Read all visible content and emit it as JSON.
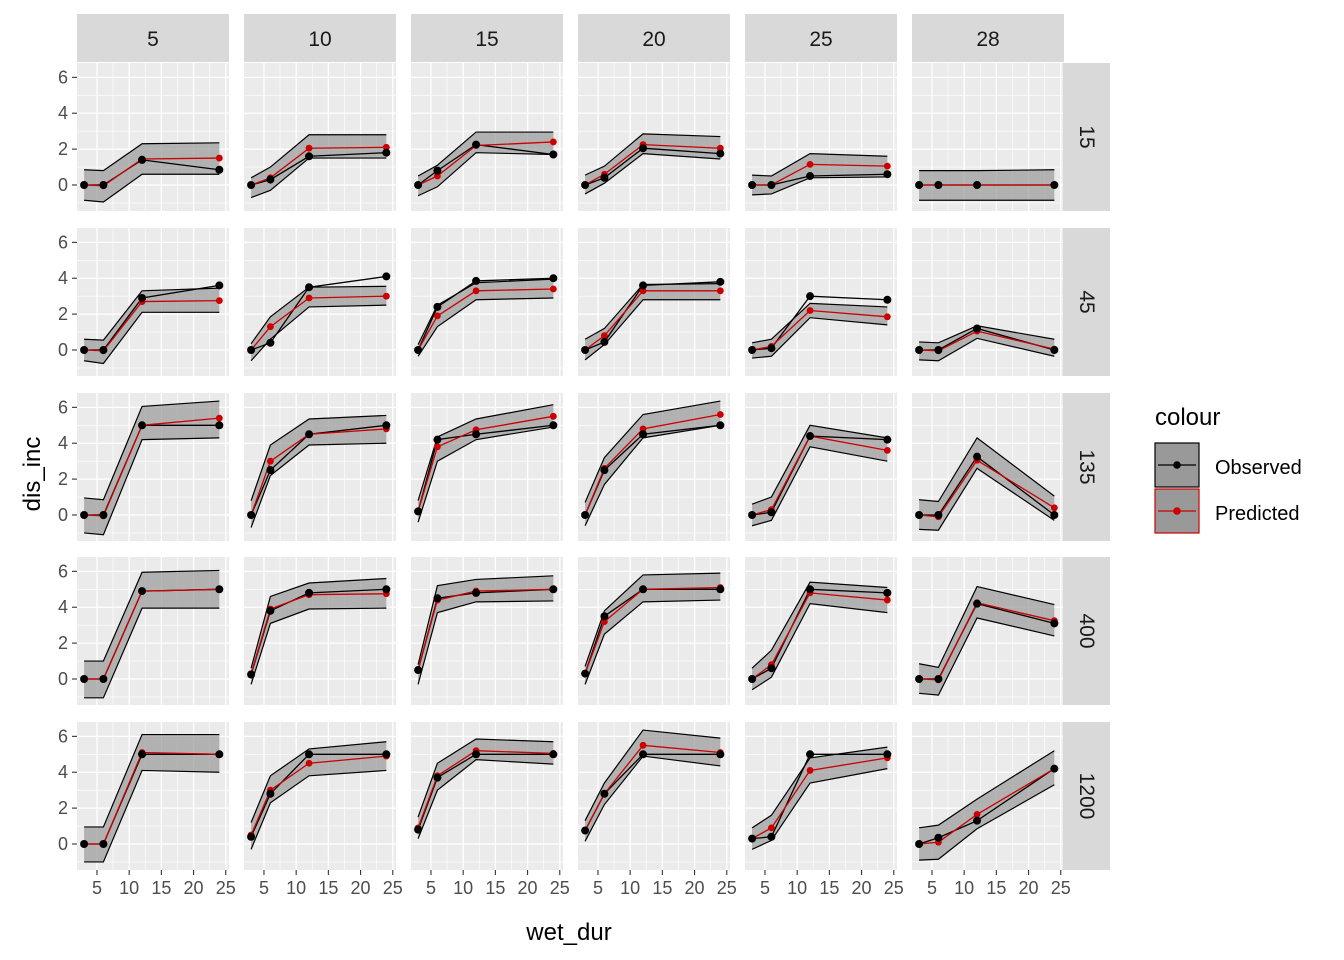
{
  "chart_data": {
    "type": "line",
    "xlabel": "wet_dur",
    "ylabel": "dis_inc",
    "xlim": [
      1.9,
      25.5
    ],
    "ylim": [
      -1.45,
      6.8
    ],
    "x_ticks": [
      5,
      10,
      15,
      20,
      25
    ],
    "y_ticks": [
      0,
      2,
      4,
      6
    ],
    "grid": true,
    "legend": {
      "title": "colour",
      "position": "right",
      "entries": [
        {
          "label": "Observed",
          "color": "#000000"
        },
        {
          "label": "Predicted",
          "color": "#cc0000"
        }
      ]
    },
    "facet_cols": {
      "labels": [
        "5",
        "10",
        "15",
        "20",
        "25",
        "28"
      ]
    },
    "facet_rows": {
      "labels": [
        "15",
        "45",
        "135",
        "400",
        "1200"
      ]
    },
    "x": [
      3,
      6,
      12,
      24
    ],
    "panels": [
      [
        {
          "observed": [
            0,
            0,
            1.4,
            0.85
          ],
          "predicted": [
            0,
            -0.05,
            1.45,
            1.5
          ],
          "band_lower": [
            -0.85,
            -0.95,
            0.6,
            0.6
          ],
          "band_upper": [
            0.85,
            0.8,
            2.3,
            2.35
          ]
        },
        {
          "observed": [
            0,
            0.3,
            1.6,
            1.8
          ],
          "predicted": [
            0,
            0.4,
            2.05,
            2.1
          ],
          "band_lower": [
            -0.7,
            -0.3,
            1.5,
            1.5
          ],
          "band_upper": [
            0.4,
            1.0,
            2.8,
            2.8
          ]
        },
        {
          "observed": [
            0,
            0.8,
            2.25,
            1.7
          ],
          "predicted": [
            0,
            0.5,
            2.2,
            2.4
          ],
          "band_lower": [
            -0.6,
            -0.1,
            1.8,
            1.7
          ],
          "band_upper": [
            0.5,
            1.1,
            2.95,
            2.95
          ]
        },
        {
          "observed": [
            0,
            0.4,
            2.05,
            1.75
          ],
          "predicted": [
            0,
            0.6,
            2.25,
            2.05
          ],
          "band_lower": [
            -0.5,
            0.1,
            1.75,
            1.45
          ],
          "band_upper": [
            0.55,
            1.05,
            2.85,
            2.7
          ]
        },
        {
          "observed": [
            0,
            0,
            0.5,
            0.6
          ],
          "predicted": [
            0,
            0,
            1.15,
            1.05
          ],
          "band_lower": [
            -0.55,
            -0.5,
            0.4,
            0.45
          ],
          "band_upper": [
            0.55,
            0.5,
            1.75,
            1.6
          ]
        },
        {
          "observed": [
            0,
            0,
            0,
            0
          ],
          "predicted": [
            0,
            0,
            0,
            0
          ],
          "band_lower": [
            -0.85,
            -0.85,
            -0.85,
            -0.85
          ],
          "band_upper": [
            0.8,
            0.8,
            0.8,
            0.85
          ]
        }
      ],
      [
        {
          "observed": [
            0,
            0,
            2.9,
            3.6
          ],
          "predicted": [
            0,
            -0.05,
            2.7,
            2.75
          ],
          "band_lower": [
            -0.6,
            -0.75,
            2.1,
            2.1
          ],
          "band_upper": [
            0.6,
            0.55,
            3.3,
            3.45
          ]
        },
        {
          "observed": [
            0,
            0.4,
            3.5,
            4.1
          ],
          "predicted": [
            0,
            1.3,
            2.9,
            3.0
          ],
          "band_lower": [
            -0.6,
            0.6,
            2.4,
            2.5
          ],
          "band_upper": [
            0.35,
            1.85,
            3.5,
            3.55
          ]
        },
        {
          "observed": [
            0,
            2.4,
            3.85,
            4.0
          ],
          "predicted": [
            0,
            1.9,
            3.3,
            3.4
          ],
          "band_lower": [
            -0.35,
            1.3,
            2.8,
            2.9
          ],
          "band_upper": [
            0.3,
            2.5,
            3.75,
            3.95
          ]
        },
        {
          "observed": [
            0,
            0.45,
            3.6,
            3.8
          ],
          "predicted": [
            0,
            0.8,
            3.3,
            3.3
          ],
          "band_lower": [
            -0.55,
            0.3,
            2.8,
            2.8
          ],
          "band_upper": [
            0.6,
            1.2,
            3.65,
            3.7
          ]
        },
        {
          "observed": [
            0,
            0.1,
            3.0,
            2.8
          ],
          "predicted": [
            0,
            0.2,
            2.2,
            1.85
          ],
          "band_lower": [
            -0.45,
            -0.35,
            1.8,
            1.4
          ],
          "band_upper": [
            0.4,
            0.6,
            2.6,
            2.4
          ]
        },
        {
          "observed": [
            0,
            0,
            1.2,
            0
          ],
          "predicted": [
            0,
            -0.05,
            1.05,
            0.05
          ],
          "band_lower": [
            -0.55,
            -0.6,
            0.65,
            -0.35
          ],
          "band_upper": [
            0.45,
            0.4,
            1.35,
            0.6
          ]
        }
      ],
      [
        {
          "observed": [
            0,
            0,
            5.0,
            5.0
          ],
          "predicted": [
            0,
            -0.05,
            5.0,
            5.4
          ],
          "band_lower": [
            -1.0,
            -1.1,
            4.2,
            4.3
          ],
          "band_upper": [
            0.95,
            0.85,
            6.05,
            6.35
          ]
        },
        {
          "observed": [
            0,
            2.5,
            4.5,
            5.0
          ],
          "predicted": [
            0,
            3.0,
            4.5,
            4.8
          ],
          "band_lower": [
            -0.7,
            2.2,
            3.9,
            4.0
          ],
          "band_upper": [
            0.8,
            3.9,
            5.35,
            5.55
          ]
        },
        {
          "observed": [
            0.2,
            4.2,
            4.5,
            5.0
          ],
          "predicted": [
            0.2,
            3.8,
            4.75,
            5.5
          ],
          "band_lower": [
            -0.4,
            3.0,
            4.2,
            4.9
          ],
          "band_upper": [
            0.8,
            4.35,
            5.35,
            6.15
          ]
        },
        {
          "observed": [
            0,
            2.5,
            4.5,
            5.0
          ],
          "predicted": [
            0,
            2.6,
            4.8,
            5.6
          ],
          "band_lower": [
            -0.6,
            1.7,
            4.3,
            5.0
          ],
          "band_upper": [
            0.7,
            3.2,
            5.6,
            6.35
          ]
        },
        {
          "observed": [
            0,
            0.15,
            4.4,
            4.2
          ],
          "predicted": [
            0,
            0.3,
            4.4,
            3.6
          ],
          "band_lower": [
            -0.6,
            -0.3,
            3.8,
            3.0
          ],
          "band_upper": [
            0.6,
            1.0,
            5.0,
            4.3
          ]
        },
        {
          "observed": [
            0,
            0,
            3.25,
            0
          ],
          "predicted": [
            0,
            -0.1,
            3.05,
            0.4
          ],
          "band_lower": [
            -0.8,
            -0.85,
            2.6,
            -0.3
          ],
          "band_upper": [
            0.85,
            0.75,
            4.3,
            1.05
          ]
        }
      ],
      [
        {
          "observed": [
            0,
            0,
            4.9,
            5.0
          ],
          "predicted": [
            0,
            0,
            4.9,
            5.0
          ],
          "band_lower": [
            -1.05,
            -1.05,
            3.95,
            3.95
          ],
          "band_upper": [
            1.0,
            1.0,
            5.95,
            6.05
          ]
        },
        {
          "observed": [
            0.25,
            3.8,
            4.8,
            5.0
          ],
          "predicted": [
            0.3,
            3.9,
            4.7,
            4.75
          ],
          "band_lower": [
            -0.3,
            3.1,
            3.9,
            3.95
          ],
          "band_upper": [
            0.6,
            4.6,
            5.35,
            5.6
          ]
        },
        {
          "observed": [
            0.5,
            4.5,
            4.8,
            5.0
          ],
          "predicted": [
            0.5,
            4.4,
            4.9,
            5.0
          ],
          "band_lower": [
            -0.3,
            3.7,
            4.3,
            4.35
          ],
          "band_upper": [
            0.8,
            5.2,
            5.55,
            5.75
          ]
        },
        {
          "observed": [
            0.3,
            3.5,
            5.0,
            5.0
          ],
          "predicted": [
            0.3,
            3.2,
            5.0,
            5.1
          ],
          "band_lower": [
            -0.3,
            2.5,
            4.3,
            4.4
          ],
          "band_upper": [
            0.7,
            3.8,
            5.8,
            5.9
          ]
        },
        {
          "observed": [
            0,
            0.6,
            5.0,
            4.8
          ],
          "predicted": [
            0,
            0.8,
            4.8,
            4.4
          ],
          "band_lower": [
            -0.6,
            0.1,
            4.2,
            3.7
          ],
          "band_upper": [
            0.6,
            1.6,
            5.4,
            5.1
          ]
        },
        {
          "observed": [
            0,
            0,
            4.2,
            3.1
          ],
          "predicted": [
            0,
            -0.05,
            4.25,
            3.25
          ],
          "band_lower": [
            -0.8,
            -0.9,
            3.4,
            2.4
          ],
          "band_upper": [
            0.85,
            0.65,
            5.15,
            4.15
          ]
        }
      ],
      [
        {
          "observed": [
            0,
            0,
            5.0,
            5.0
          ],
          "predicted": [
            0,
            0,
            5.1,
            5.0
          ],
          "band_lower": [
            -1.0,
            -1.0,
            4.1,
            4.0
          ],
          "band_upper": [
            0.95,
            0.95,
            6.1,
            6.1
          ]
        },
        {
          "observed": [
            0.4,
            2.8,
            5.0,
            5.0
          ],
          "predicted": [
            0.5,
            3.0,
            4.5,
            4.9
          ],
          "band_lower": [
            -0.3,
            2.3,
            3.8,
            4.1
          ],
          "band_upper": [
            1.2,
            3.8,
            5.3,
            5.7
          ]
        },
        {
          "observed": [
            0.8,
            3.7,
            5.0,
            5.0
          ],
          "predicted": [
            0.9,
            3.8,
            5.2,
            5.05
          ],
          "band_lower": [
            0.3,
            3.0,
            4.7,
            4.45
          ],
          "band_upper": [
            1.5,
            4.5,
            5.85,
            5.7
          ]
        },
        {
          "observed": [
            0.75,
            2.8,
            5.0,
            5.0
          ],
          "predicted": [
            0.75,
            2.8,
            5.5,
            5.1
          ],
          "band_lower": [
            0.15,
            2.2,
            4.9,
            4.35
          ],
          "band_upper": [
            1.3,
            3.4,
            6.35,
            5.9
          ]
        },
        {
          "observed": [
            0.3,
            0.4,
            5.0,
            5.0
          ],
          "predicted": [
            0.3,
            0.9,
            4.1,
            4.8
          ],
          "band_lower": [
            -0.3,
            0.2,
            3.4,
            4.2
          ],
          "band_upper": [
            0.9,
            1.6,
            4.8,
            5.4
          ]
        },
        {
          "observed": [
            0,
            0.35,
            1.3,
            4.2
          ],
          "predicted": [
            0,
            0.1,
            1.65,
            4.2
          ],
          "band_lower": [
            -0.9,
            -0.85,
            0.85,
            3.3
          ],
          "band_upper": [
            0.9,
            1.05,
            2.5,
            5.2
          ]
        }
      ]
    ]
  }
}
